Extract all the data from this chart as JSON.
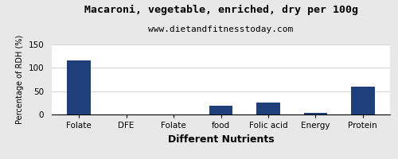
{
  "title": "Macaroni, vegetable, enriched, dry per 100g",
  "subtitle": "www.dietandfitnesstoday.com",
  "xlabel": "Different Nutrients",
  "ylabel": "Percentage of RDH (%)",
  "categories": [
    "Folate",
    "DFE",
    "Folate",
    "food",
    "Folic acid",
    "Energy",
    "Protein"
  ],
  "values": [
    116,
    0.5,
    0.5,
    19,
    25,
    3,
    59
  ],
  "bar_color": "#1F3F7A",
  "ylim": [
    0,
    150
  ],
  "yticks": [
    0,
    50,
    100,
    150
  ],
  "background_color": "#e8e8e8",
  "plot_bg_color": "#ffffff",
  "title_fontsize": 9.5,
  "subtitle_fontsize": 8,
  "xlabel_fontsize": 9,
  "ylabel_fontsize": 7,
  "tick_fontsize": 7.5
}
